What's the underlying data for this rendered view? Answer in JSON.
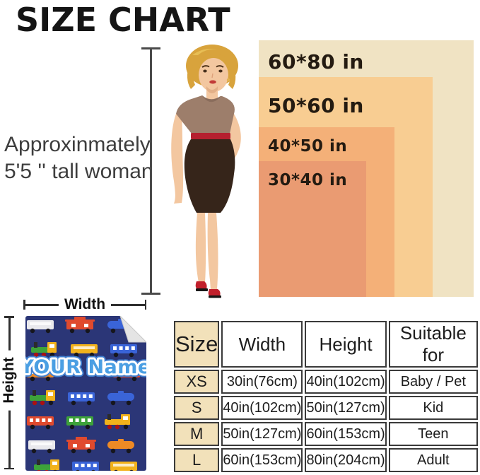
{
  "title": "SIZE CHART",
  "model_note": {
    "line1": "Approxinmately",
    "line2": "5'5 '' tall woman"
  },
  "size_boxes": [
    {
      "label": "60*80 in",
      "color": "#f0e3c3"
    },
    {
      "label": "50*60 in",
      "color": "#f8cd92"
    },
    {
      "label": "40*50 in",
      "color": "#f4b078"
    },
    {
      "label": "30*40 in",
      "color": "#ea9b72"
    }
  ],
  "ruler_color": "#4a4a4a",
  "blanket": {
    "name_text": "YOUR Name",
    "width_label": "Width",
    "height_label": "Height",
    "background_color": "#2b3677",
    "name_color": "#4b9fe3",
    "pattern_icon": "train-icon"
  },
  "table": {
    "headers": [
      "Size",
      "Width",
      "Height",
      "Suitable for"
    ],
    "rows": [
      [
        "XS",
        "30in(76cm)",
        "40in(102cm)",
        "Baby / Pet"
      ],
      [
        "S",
        "40in(102cm)",
        "50in(127cm)",
        "Kid"
      ],
      [
        "M",
        "50in(127cm)",
        "60in(153cm)",
        "Teen"
      ],
      [
        "L",
        "60in(153cm)",
        "80in(204cm)",
        "Adult"
      ]
    ],
    "first_column_color": "#f2e1ba",
    "border_color": "#3a3a3a"
  }
}
